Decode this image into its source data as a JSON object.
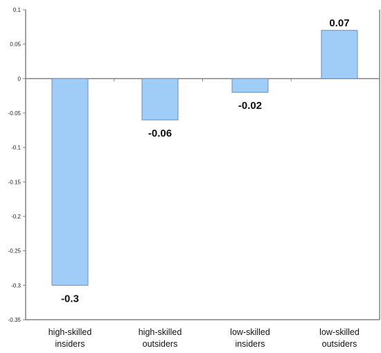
{
  "chart_data": {
    "type": "bar",
    "categories": [
      [
        "high-skilled",
        "insiders"
      ],
      [
        "high-skilled",
        "outsiders"
      ],
      [
        "low-skilled",
        "insiders"
      ],
      [
        "low-skilled",
        "outsiders"
      ]
    ],
    "values": [
      -0.3,
      -0.06,
      -0.02,
      0.07
    ],
    "data_labels": [
      "-0.3",
      "-0.06",
      "-0.02",
      "0.07"
    ],
    "title": "",
    "xlabel": "",
    "ylabel": "",
    "ylim": [
      -0.35,
      0.1
    ],
    "yticks": [
      {
        "value": 0.1,
        "label": "0.1"
      },
      {
        "value": 0.05,
        "label": "0.05"
      },
      {
        "value": 0,
        "label": "0"
      },
      {
        "value": -0.05,
        "label": "-0.05"
      },
      {
        "value": -0.1,
        "label": "-0.1"
      },
      {
        "value": -0.15,
        "label": "-0.15"
      },
      {
        "value": -0.2,
        "label": "-0.2"
      },
      {
        "value": -0.25,
        "label": "-0.25"
      },
      {
        "value": -0.3,
        "label": "-0.3"
      },
      {
        "value": -0.35,
        "label": "-0.35"
      }
    ],
    "grid": false,
    "legend": "none",
    "colors": {
      "bar_fill": "#9fcdf7",
      "bar_stroke": "#6a8fb5",
      "axis": "#808080"
    }
  }
}
